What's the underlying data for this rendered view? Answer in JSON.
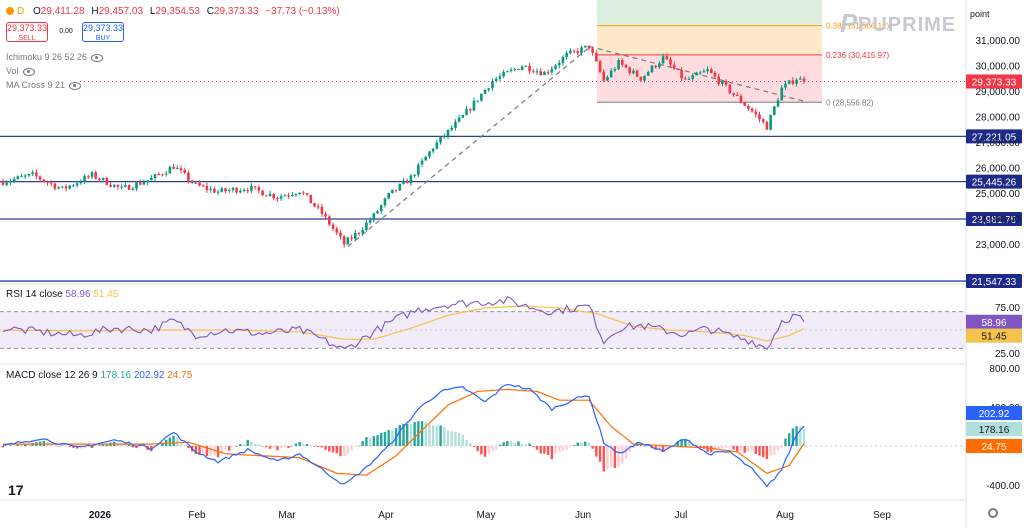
{
  "header": {
    "symbol_dot_label": "D",
    "ohlc": {
      "open_label": "O",
      "open": "29,411.28",
      "high_label": "H",
      "high": "29,457.03",
      "low_label": "L",
      "low": "29,354.53",
      "close_label": "C",
      "close": "29,373.33",
      "change": "−37.73 (−0.13%)"
    },
    "sell": {
      "price": "29,373.33",
      "label": "SELL"
    },
    "spread": "0.00",
    "buy": {
      "price": "29,373.33",
      "label": "BUY"
    },
    "indicators": [
      "Ichimoku 9 26 52 26",
      "Vol",
      "MA Cross 9 21"
    ],
    "scale_mode": "point",
    "brand": "PUPRIME",
    "tv_logo": "17"
  },
  "chart_data": {
    "type": "candlestick",
    "price_axis": {
      "ticks": [
        23000,
        24000,
        25000,
        26000,
        27000,
        28000,
        29000,
        30000,
        31000
      ],
      "tick_labels": [
        "23,000.00",
        "24,000.00",
        "25,000.00",
        "26,000.00",
        "27,000.00",
        "28,000.00",
        "29,000.00",
        "30,000.00",
        "31,000.00"
      ]
    },
    "time_axis": {
      "labels": [
        "2026",
        "Feb",
        "Mar",
        "Apr",
        "May",
        "Jun",
        "Jul",
        "Aug",
        "Sep"
      ]
    },
    "candles_knots": [
      [
        0,
        25450
      ],
      [
        8,
        25700
      ],
      [
        16,
        25150
      ],
      [
        24,
        25700
      ],
      [
        32,
        25150
      ],
      [
        40,
        25550
      ],
      [
        46,
        26050
      ],
      [
        52,
        25300
      ],
      [
        58,
        25050
      ],
      [
        66,
        25200
      ],
      [
        74,
        24850
      ],
      [
        80,
        25100
      ],
      [
        86,
        24200
      ],
      [
        92,
        23000
      ],
      [
        96,
        23500
      ],
      [
        100,
        24100
      ],
      [
        104,
        24900
      ],
      [
        110,
        25600
      ],
      [
        116,
        26800
      ],
      [
        124,
        28000
      ],
      [
        132,
        29400
      ],
      [
        140,
        30000
      ],
      [
        146,
        29700
      ],
      [
        152,
        30400
      ],
      [
        158,
        30750
      ],
      [
        162,
        29400
      ],
      [
        166,
        30100
      ],
      [
        172,
        29500
      ],
      [
        178,
        30300
      ],
      [
        184,
        29400
      ],
      [
        190,
        29800
      ],
      [
        196,
        29000
      ],
      [
        202,
        28200
      ],
      [
        206,
        27600
      ],
      [
        210,
        29100
      ],
      [
        214,
        29500
      ],
      [
        216,
        29373
      ]
    ],
    "last_close": 29373.33,
    "horizontal_levels": [
      {
        "value": 27221.05,
        "label": "27,221.05"
      },
      {
        "value": 25445.26,
        "label": "25,445.26"
      },
      {
        "value": 23981.75,
        "label": "23,981.75"
      },
      {
        "value": 21547.33,
        "label": "21,547.33"
      }
    ],
    "last_price_label": "29,373.33",
    "fibonacci": [
      {
        "ratio": "0",
        "value": 28556.82,
        "label": "0 (28,556.82)"
      },
      {
        "ratio": "0.236",
        "value": 30415.97,
        "label": "0.236 (30,415.97)"
      },
      {
        "ratio": "0.382",
        "value": 31566.12,
        "label": "0.382 (31,566.12)"
      }
    ],
    "rsi": {
      "label": "RSI 14 close",
      "value": "58.96",
      "ma_value": "51.45",
      "ticks": [
        25,
        50,
        75
      ],
      "tick_labels": [
        "25.00",
        "50.00",
        "75.00"
      ],
      "levels": [
        30,
        70
      ],
      "knots": [
        [
          0,
          52
        ],
        [
          10,
          48
        ],
        [
          20,
          44
        ],
        [
          30,
          52
        ],
        [
          40,
          50
        ],
        [
          46,
          60
        ],
        [
          52,
          45
        ],
        [
          60,
          50
        ],
        [
          70,
          46
        ],
        [
          80,
          50
        ],
        [
          86,
          40
        ],
        [
          92,
          28
        ],
        [
          96,
          38
        ],
        [
          100,
          48
        ],
        [
          106,
          62
        ],
        [
          112,
          72
        ],
        [
          120,
          78
        ],
        [
          128,
          80
        ],
        [
          136,
          82
        ],
        [
          142,
          75
        ],
        [
          148,
          70
        ],
        [
          154,
          74
        ],
        [
          158,
          76
        ],
        [
          162,
          38
        ],
        [
          166,
          52
        ],
        [
          172,
          55
        ],
        [
          178,
          50
        ],
        [
          184,
          45
        ],
        [
          190,
          52
        ],
        [
          196,
          44
        ],
        [
          202,
          38
        ],
        [
          206,
          30
        ],
        [
          210,
          60
        ],
        [
          214,
          66
        ],
        [
          216,
          58.96
        ]
      ],
      "ma_knots": [
        [
          0,
          50
        ],
        [
          20,
          49
        ],
        [
          40,
          50
        ],
        [
          60,
          50
        ],
        [
          80,
          48
        ],
        [
          92,
          40
        ],
        [
          100,
          40
        ],
        [
          110,
          52
        ],
        [
          120,
          66
        ],
        [
          130,
          74
        ],
        [
          140,
          76
        ],
        [
          150,
          74
        ],
        [
          160,
          68
        ],
        [
          170,
          54
        ],
        [
          180,
          50
        ],
        [
          190,
          48
        ],
        [
          200,
          44
        ],
        [
          206,
          38
        ],
        [
          212,
          44
        ],
        [
          216,
          51.45
        ]
      ]
    },
    "macd": {
      "label": "MACD close 12 26 9",
      "histogram": "178.16",
      "macd_value": "202.92",
      "signal_value": "24.75",
      "ticks": [
        -400,
        0,
        400,
        800
      ],
      "tick_labels": [
        "-400.00",
        "0.00",
        "400.00",
        "800.00"
      ],
      "macd_knots": [
        [
          0,
          0
        ],
        [
          10,
          80
        ],
        [
          20,
          -20
        ],
        [
          30,
          60
        ],
        [
          40,
          -20
        ],
        [
          46,
          140
        ],
        [
          52,
          -60
        ],
        [
          58,
          -160
        ],
        [
          66,
          -40
        ],
        [
          74,
          -160
        ],
        [
          80,
          -80
        ],
        [
          86,
          -240
        ],
        [
          92,
          -400
        ],
        [
          98,
          -220
        ],
        [
          104,
          0
        ],
        [
          112,
          380
        ],
        [
          118,
          560
        ],
        [
          124,
          600
        ],
        [
          130,
          450
        ],
        [
          136,
          640
        ],
        [
          142,
          580
        ],
        [
          148,
          380
        ],
        [
          154,
          480
        ],
        [
          158,
          520
        ],
        [
          162,
          40
        ],
        [
          166,
          -80
        ],
        [
          172,
          40
        ],
        [
          178,
          -60
        ],
        [
          184,
          80
        ],
        [
          190,
          -80
        ],
        [
          196,
          -60
        ],
        [
          202,
          -240
        ],
        [
          206,
          -420
        ],
        [
          210,
          -240
        ],
        [
          214,
          120
        ],
        [
          216,
          202.92
        ]
      ],
      "signal_knots": [
        [
          0,
          20
        ],
        [
          20,
          20
        ],
        [
          40,
          20
        ],
        [
          50,
          40
        ],
        [
          60,
          -80
        ],
        [
          70,
          -100
        ],
        [
          80,
          -120
        ],
        [
          90,
          -280
        ],
        [
          98,
          -300
        ],
        [
          106,
          -100
        ],
        [
          114,
          200
        ],
        [
          120,
          420
        ],
        [
          128,
          560
        ],
        [
          136,
          580
        ],
        [
          144,
          560
        ],
        [
          150,
          470
        ],
        [
          158,
          470
        ],
        [
          164,
          200
        ],
        [
          170,
          20
        ],
        [
          180,
          0
        ],
        [
          190,
          -20
        ],
        [
          198,
          -60
        ],
        [
          206,
          -280
        ],
        [
          212,
          -200
        ],
        [
          216,
          24.75
        ]
      ]
    }
  },
  "colors": {
    "bull": "#089981",
    "bear": "#f23645",
    "level": "#2f3fa0",
    "rsi": "#7e57c2",
    "rsi_ma": "#f5c24b",
    "macd": "#2962ff",
    "signal": "#ff6d00",
    "last": "#f23645"
  }
}
